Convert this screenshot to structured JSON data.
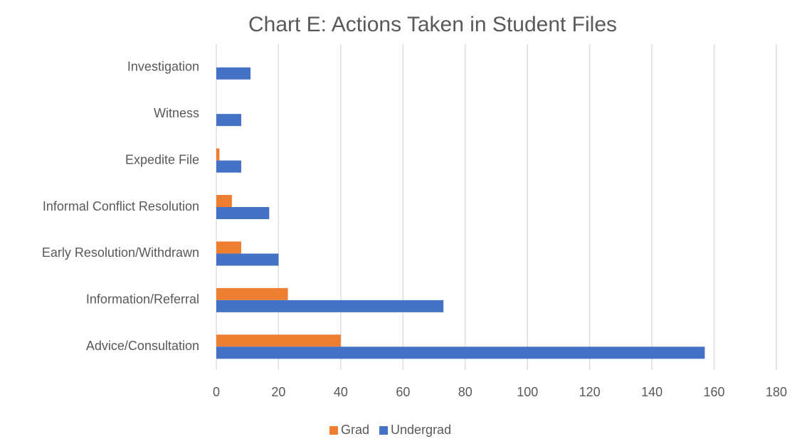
{
  "chart_data": {
    "type": "barh",
    "title": "Chart E: Actions Taken in Student Files",
    "categories": [
      "Advice/Consultation",
      "Information/Referral",
      "Early Resolution/Withdrawn",
      "Informal Conflict Resolution",
      "Expedite File",
      "Witness",
      "Investigation"
    ],
    "series": [
      {
        "name": "Grad",
        "color": "#ed7d31",
        "values": [
          40,
          23,
          8,
          5,
          1,
          0,
          0
        ]
      },
      {
        "name": "Undergrad",
        "color": "#4472c4",
        "values": [
          157,
          73,
          20,
          17,
          8,
          8,
          11
        ]
      }
    ],
    "xlim": [
      0,
      180
    ],
    "xticks": [
      0,
      20,
      40,
      60,
      80,
      100,
      120,
      140,
      160,
      180
    ],
    "grid": true,
    "legend": "bottom"
  }
}
